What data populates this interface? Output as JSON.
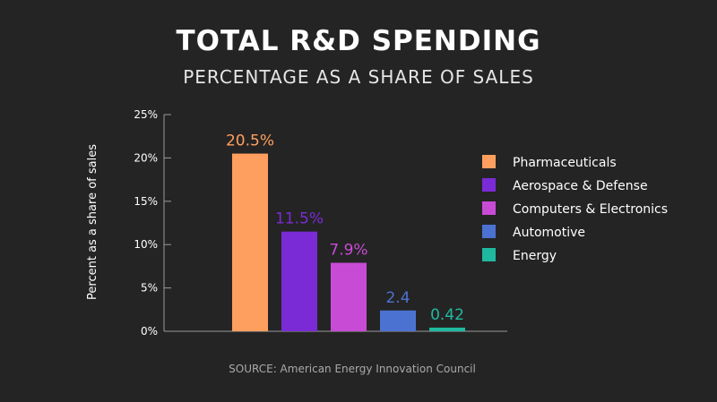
{
  "colors": {
    "background": "#252424",
    "axis": "#9a9a9a",
    "text": "#ffffff"
  },
  "chart_data": {
    "type": "bar",
    "title": "TOTAL R&D SPENDING",
    "subtitle": "PERCENTAGE AS A SHARE OF SALES",
    "ylabel": "Percent as a share of sales",
    "xlabel": "",
    "ylim": [
      0,
      25
    ],
    "yticks": [
      {
        "value": 0,
        "label": "0%"
      },
      {
        "value": 5,
        "label": "5%"
      },
      {
        "value": 10,
        "label": "10%"
      },
      {
        "value": 15,
        "label": "15%"
      },
      {
        "value": 20,
        "label": "20%"
      },
      {
        "value": 25,
        "label": "25%"
      }
    ],
    "legend_position": "right",
    "grid": false,
    "categories": [
      "Pharmaceuticals",
      "Aerospace & Defense",
      "Computers & Electronics",
      "Automotive",
      "Energy"
    ],
    "values": [
      20.5,
      11.5,
      7.9,
      2.4,
      0.42
    ],
    "data_labels": [
      "20.5%",
      "11.5%",
      "7.9%",
      "2.4",
      "0.42"
    ],
    "colors": [
      "#ff9f5f",
      "#7b2bd6",
      "#c84bd6",
      "#4c72d1",
      "#1fb9a0"
    ],
    "source": "SOURCE: American Energy Innovation Council"
  }
}
